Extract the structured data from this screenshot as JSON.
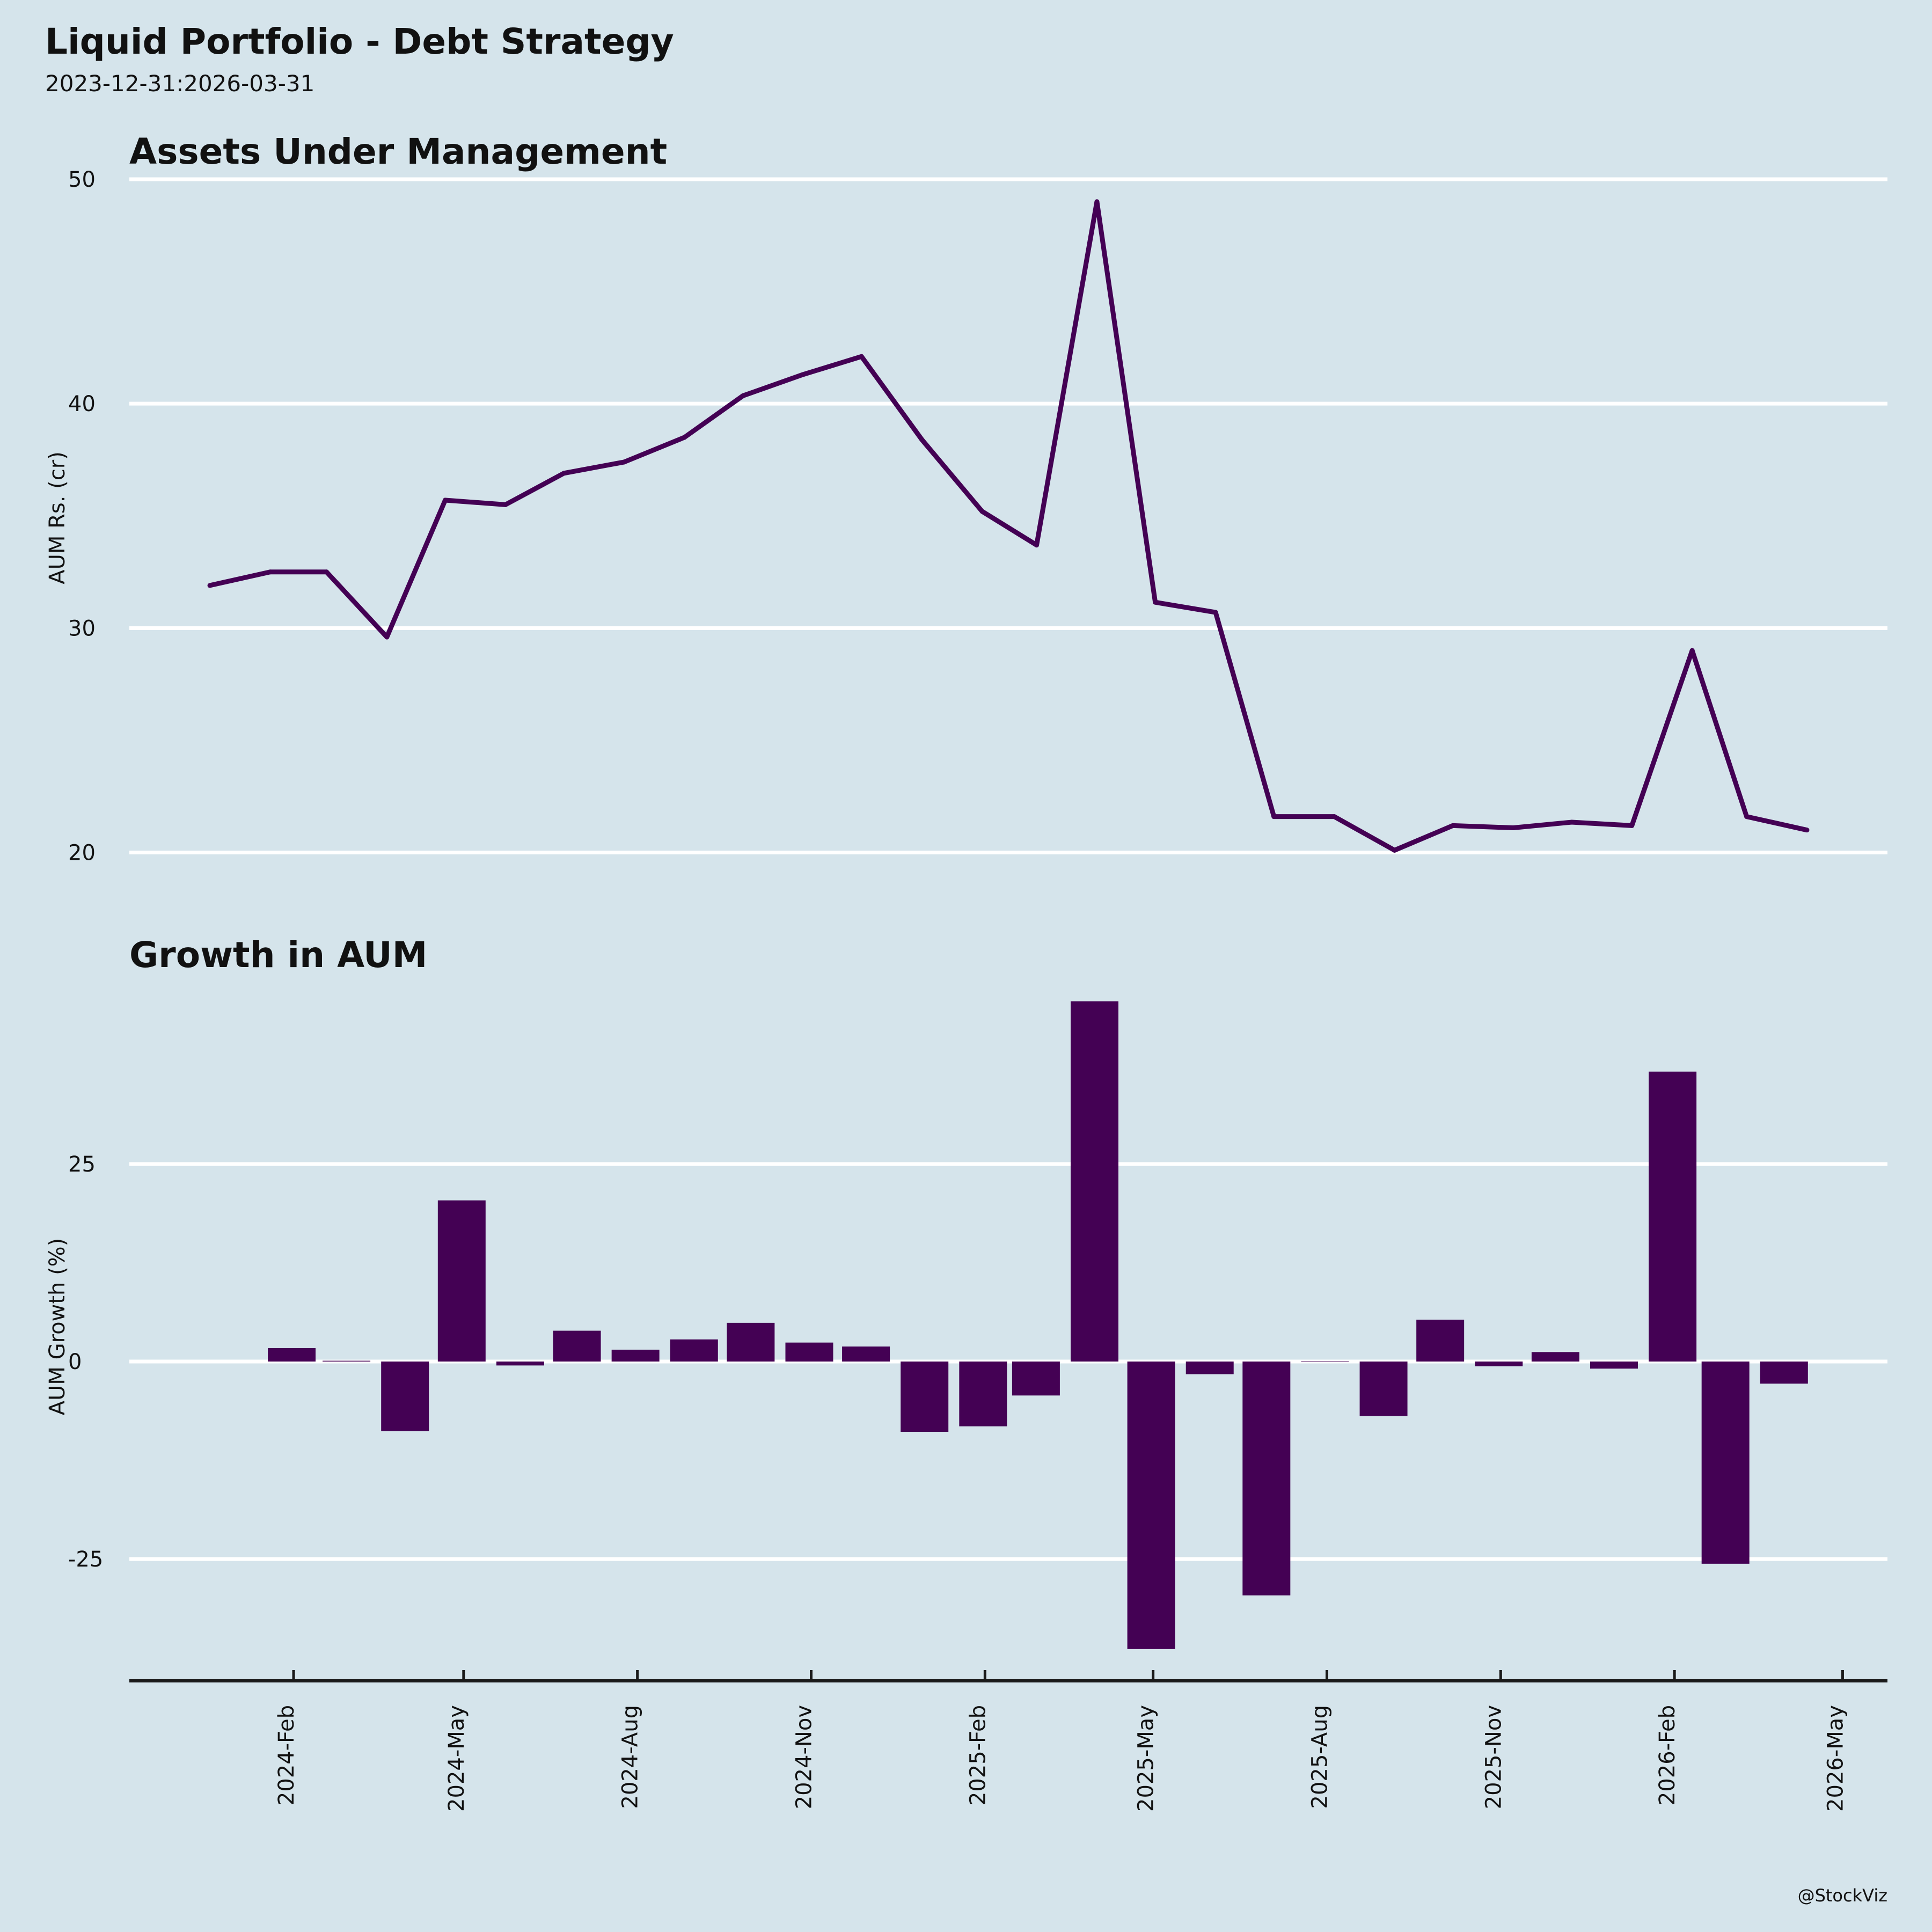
{
  "header": {
    "title": "Liquid Portfolio - Debt Strategy",
    "subtitle": "2023-12-31:2026-03-31"
  },
  "footer": {
    "watermark": "@StockViz"
  },
  "colors": {
    "background": "#d5e4eb",
    "series": "#440154",
    "grid": "#ffffff",
    "axis": "#1a1a1a"
  },
  "chart_data": [
    {
      "type": "line",
      "title": "Assets Under Management",
      "xlabel": "",
      "ylabel": "AUM Rs. (cr)",
      "yticks": [
        20,
        30,
        40,
        50
      ],
      "grid": true,
      "legend": "none",
      "x": [
        "2023-12-31",
        "2024-01-31",
        "2024-02-29",
        "2024-03-31",
        "2024-04-30",
        "2024-05-31",
        "2024-06-30",
        "2024-07-31",
        "2024-08-31",
        "2024-09-30",
        "2024-10-31",
        "2024-11-30",
        "2024-12-31",
        "2025-01-31",
        "2025-02-28",
        "2025-03-31",
        "2025-04-30",
        "2025-05-31",
        "2025-06-30",
        "2025-07-31",
        "2025-08-31",
        "2025-09-30",
        "2025-10-31",
        "2025-11-30",
        "2025-12-31",
        "2026-01-31",
        "2026-02-28",
        "2026-03-31"
      ],
      "series": [
        {
          "name": "AUM",
          "values": [
            31.9,
            32.5,
            32.5,
            29.6,
            35.7,
            35.5,
            36.9,
            37.4,
            38.5,
            40.35,
            41.3,
            42.1,
            38.4,
            35.2,
            33.7,
            49.0,
            31.15,
            30.7,
            21.6,
            21.6,
            20.1,
            21.2,
            21.1,
            21.35,
            21.2,
            29.0,
            21.6,
            21.0
          ]
        }
      ]
    },
    {
      "type": "bar",
      "title": "Growth in AUM",
      "xlabel": "",
      "ylabel": "AUM Growth (%)",
      "yticks": [
        -25,
        0,
        25
      ],
      "grid": true,
      "legend": "none",
      "x": [
        "2023-12-31",
        "2024-01-31",
        "2024-02-29",
        "2024-03-31",
        "2024-04-30",
        "2024-05-31",
        "2024-06-30",
        "2024-07-31",
        "2024-08-31",
        "2024-09-30",
        "2024-10-31",
        "2024-11-30",
        "2024-12-31",
        "2025-01-31",
        "2025-02-28",
        "2025-03-31",
        "2025-04-30",
        "2025-05-31",
        "2025-06-30",
        "2025-07-31",
        "2025-08-31",
        "2025-09-30",
        "2025-10-31",
        "2025-11-30",
        "2025-12-31",
        "2026-01-31",
        "2026-02-28",
        "2026-03-31"
      ],
      "series": [
        {
          "name": "AUM Growth",
          "values": [
            null,
            1.7,
            0.1,
            -8.8,
            20.4,
            -0.5,
            3.9,
            1.5,
            2.8,
            4.9,
            2.4,
            1.9,
            -8.9,
            -8.2,
            -4.3,
            45.6,
            -36.4,
            -1.6,
            -29.6,
            0.0,
            -6.9,
            5.3,
            -0.6,
            1.2,
            -0.9,
            36.7,
            -25.6,
            -2.8
          ]
        }
      ],
      "xticks": [
        {
          "label": "2024-Feb",
          "date": "2024-02-01"
        },
        {
          "label": "2024-May",
          "date": "2024-05-01"
        },
        {
          "label": "2024-Aug",
          "date": "2024-08-01"
        },
        {
          "label": "2024-Nov",
          "date": "2024-11-01"
        },
        {
          "label": "2025-Feb",
          "date": "2025-02-01"
        },
        {
          "label": "2025-May",
          "date": "2025-05-01"
        },
        {
          "label": "2025-Aug",
          "date": "2025-08-01"
        },
        {
          "label": "2025-Nov",
          "date": "2025-11-01"
        },
        {
          "label": "2026-Feb",
          "date": "2026-02-01"
        },
        {
          "label": "2026-May",
          "date": "2026-05-01"
        }
      ]
    }
  ]
}
